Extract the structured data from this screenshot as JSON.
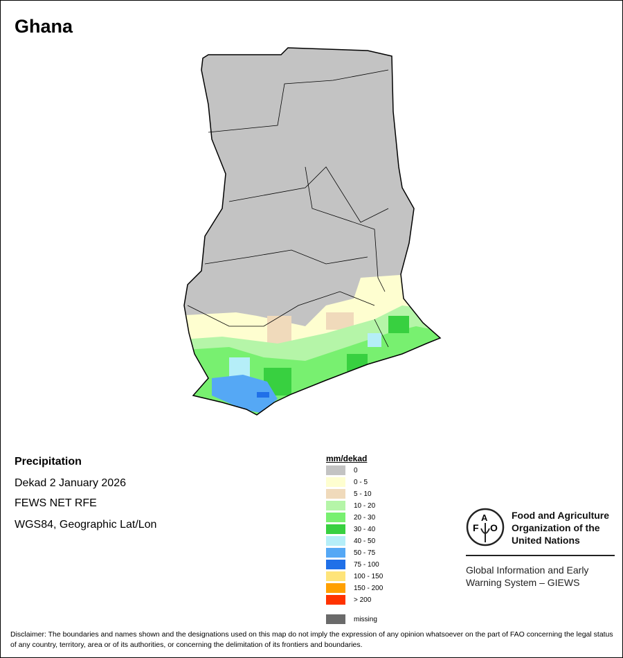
{
  "title": "Ghana",
  "info": {
    "variable": "Precipitation",
    "period": "Dekad 2 January 2026",
    "source": "FEWS NET RFE",
    "projection": "WGS84, Geographic Lat/Lon"
  },
  "legend": {
    "title": "mm/dekad",
    "items": [
      {
        "label": "0",
        "color": "#c3c3c3"
      },
      {
        "label": "0 - 5",
        "color": "#fefed0"
      },
      {
        "label": "5 - 10",
        "color": "#f0dabb"
      },
      {
        "label": "10 - 20",
        "color": "#b5f5a8"
      },
      {
        "label": "20 - 30",
        "color": "#78f070"
      },
      {
        "label": "30 - 40",
        "color": "#38d040"
      },
      {
        "label": "40 - 50",
        "color": "#b5eef8"
      },
      {
        "label": "50 - 75",
        "color": "#55a8f5"
      },
      {
        "label": "75 - 100",
        "color": "#2070e8"
      },
      {
        "label": "100 - 150",
        "color": "#fee47a"
      },
      {
        "label": "150 - 200",
        "color": "#ffa000"
      },
      {
        "label": "> 200",
        "color": "#ff3300"
      }
    ],
    "missing": {
      "label": "missing",
      "color": "#6a6a6a"
    }
  },
  "fao": {
    "logo_text": "FAO FIAT PANIS",
    "name": [
      "Food and Agriculture",
      "Organization of the",
      "United Nations"
    ],
    "giews": [
      "Global Information and Early",
      "Warning System – GIEWS"
    ]
  },
  "disclaimer": "Disclaimer: The boundaries and names shown and the designations used on this map do not imply the expression of any opinion whatsoever on the part of FAO concerning the legal status of any country, territory, area or of its authorities, or concerning the delimitation of its frontiers and boundaries."
}
